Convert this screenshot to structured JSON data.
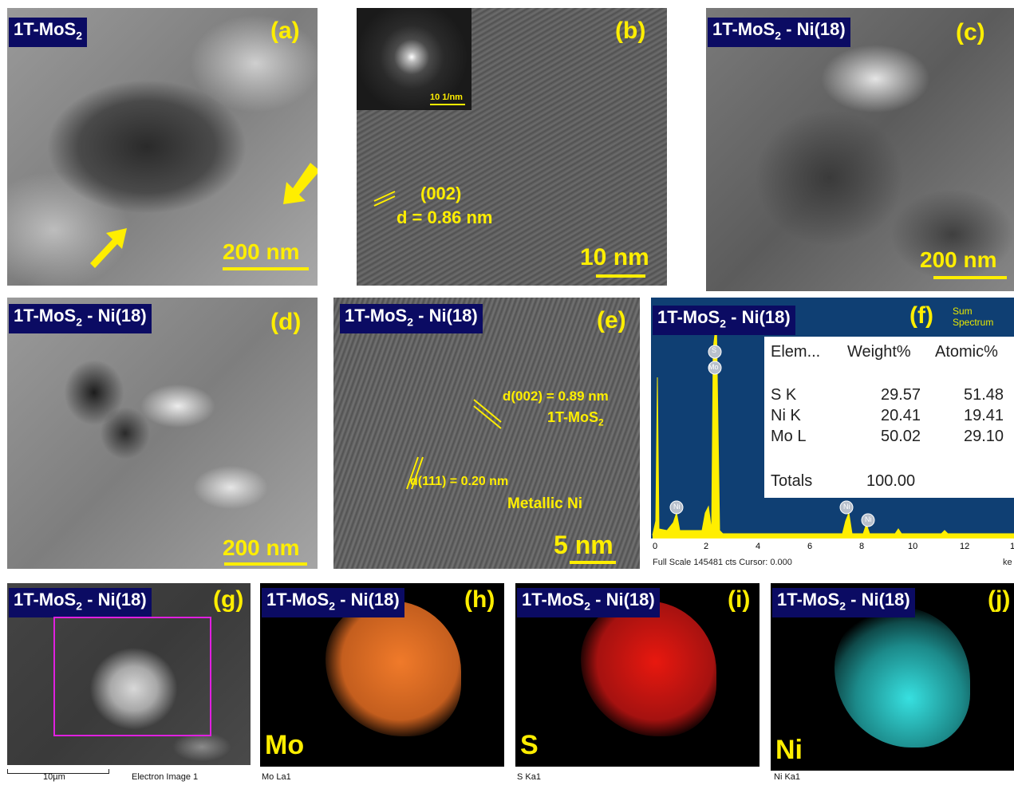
{
  "panels": {
    "a": {
      "sample": "1T-MoS",
      "sub": "2",
      "letter": "(a)",
      "scale": "200 nm"
    },
    "b": {
      "letter": "(b)",
      "scale": "10 nm",
      "inset_scale": "10 1/nm",
      "plane": "(002)",
      "spacing": "d = 0.86 nm"
    },
    "c": {
      "sample": "1T-MoS",
      "sub": "2",
      "suffix": " - Ni(18)",
      "letter": "(c)",
      "scale": "200 nm"
    },
    "d": {
      "sample": "1T-MoS",
      "sub": "2",
      "suffix": " - Ni(18)",
      "letter": "(d)",
      "scale": "200 nm"
    },
    "e": {
      "sample": "1T-MoS",
      "sub": "2",
      "suffix": " - Ni(18)",
      "letter": "(e)",
      "scale": "5 nm",
      "line1": "d(002) = 0.89 nm",
      "line2_main": "1T-MoS",
      "line2_sub": "2",
      "line3": "d(111) = 0.20 nm",
      "line4": "Metallic Ni"
    },
    "f": {
      "sample": "1T-MoS",
      "sub": "2",
      "suffix": " - Ni(18)",
      "letter": "(f)",
      "title": "Sum Spectrum",
      "footer": "Full Scale 145481 cts Cursor: 0.000",
      "unit": "ke",
      "xticks": [
        "0",
        "2",
        "4",
        "6",
        "8",
        "10",
        "12",
        "1"
      ],
      "peak_labels": [
        "S",
        "Mo",
        "Ni",
        "Ni",
        "Ni"
      ],
      "table": {
        "headers": [
          "Elem...",
          "Weight%",
          "Atomic%"
        ],
        "rows": [
          [
            "S K",
            "29.57",
            "51.48"
          ],
          [
            "Ni K",
            "20.41",
            "19.41"
          ],
          [
            "Mo L",
            "50.02",
            "29.10"
          ]
        ],
        "total_label": "Totals",
        "total_value": "100.00"
      }
    },
    "g": {
      "sample": "1T-MoS",
      "sub": "2",
      "suffix": " - Ni(18)",
      "letter": "(g)",
      "scale": "10µm",
      "caption": "Electron Image 1"
    },
    "h": {
      "sample": "1T-MoS",
      "sub": "2",
      "suffix": " - Ni(18)",
      "letter": "(h)",
      "element": "Mo",
      "caption": "Mo La1",
      "color": "#f07a2a"
    },
    "i": {
      "sample": "1T-MoS",
      "sub": "2",
      "suffix": " - Ni(18)",
      "letter": "(i)",
      "element": "S",
      "caption": "S Ka1",
      "color": "#e8180f"
    },
    "j": {
      "sample": "1T-MoS",
      "sub": "2",
      "suffix": " - Ni(18)",
      "letter": "(j)",
      "element": "Ni",
      "caption": "Ni Ka1",
      "color": "#2fd6d6"
    }
  },
  "colors": {
    "label_yellow": "#ffee00",
    "tag_navy": "#0b0b63",
    "edx_bg": "#0f3f73",
    "roi_magenta": "#e020e0"
  }
}
